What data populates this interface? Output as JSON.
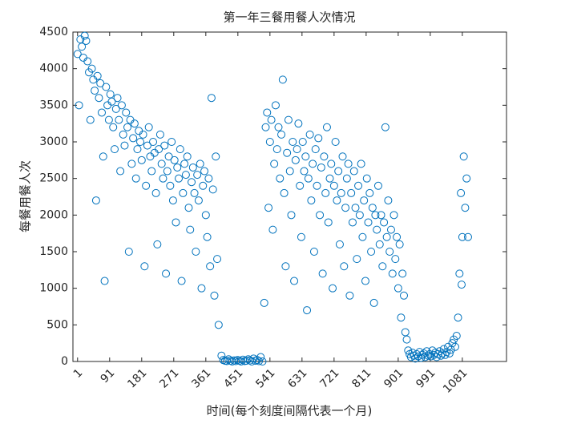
{
  "chart_data": {
    "type": "scatter",
    "title": "第一年三餐用餐人次情况",
    "x_label": "时间(每个刻度间隔代表一个月)",
    "y_label": "每餐用餐人次",
    "color": "#0072bd",
    "xlim": [
      -12,
      1205
    ],
    "ylim": [
      0,
      4500
    ],
    "xticks": [
      1,
      91,
      181,
      271,
      361,
      451,
      541,
      631,
      721,
      811,
      901,
      991,
      1081
    ],
    "yticks": [
      0,
      500,
      1000,
      1500,
      2000,
      2500,
      3000,
      3500,
      4000,
      4500
    ],
    "x": [
      1,
      5,
      9,
      13,
      17,
      21,
      25,
      29,
      33,
      37,
      41,
      45,
      49,
      53,
      57,
      61,
      65,
      69,
      73,
      77,
      81,
      85,
      89,
      93,
      97,
      101,
      105,
      109,
      113,
      117,
      121,
      125,
      129,
      133,
      137,
      141,
      145,
      149,
      153,
      157,
      161,
      165,
      169,
      173,
      177,
      181,
      185,
      189,
      193,
      197,
      201,
      205,
      209,
      213,
      217,
      221,
      225,
      229,
      233,
      237,
      241,
      245,
      249,
      253,
      257,
      261,
      265,
      269,
      273,
      277,
      281,
      285,
      289,
      293,
      297,
      301,
      305,
      309,
      313,
      317,
      321,
      325,
      329,
      333,
      337,
      341,
      345,
      349,
      353,
      357,
      361,
      365,
      369,
      373,
      377,
      381,
      385,
      389,
      393,
      397,
      405,
      410,
      415,
      420,
      425,
      430,
      435,
      440,
      445,
      450,
      455,
      460,
      465,
      470,
      475,
      480,
      485,
      490,
      495,
      500,
      505,
      510,
      515,
      520,
      525,
      529,
      533,
      537,
      541,
      545,
      549,
      553,
      557,
      561,
      565,
      569,
      573,
      577,
      581,
      585,
      589,
      593,
      597,
      601,
      605,
      609,
      613,
      617,
      621,
      625,
      629,
      633,
      637,
      641,
      645,
      649,
      653,
      657,
      661,
      665,
      669,
      673,
      677,
      681,
      685,
      689,
      693,
      697,
      701,
      705,
      709,
      713,
      717,
      721,
      725,
      729,
      733,
      737,
      741,
      745,
      749,
      753,
      757,
      761,
      765,
      769,
      773,
      777,
      781,
      785,
      789,
      793,
      797,
      801,
      805,
      809,
      813,
      817,
      821,
      825,
      829,
      833,
      837,
      841,
      845,
      849,
      853,
      857,
      861,
      865,
      869,
      873,
      877,
      881,
      885,
      889,
      893,
      897,
      901,
      905,
      909,
      913,
      917,
      921,
      925,
      929,
      933,
      937,
      941,
      945,
      949,
      953,
      957,
      961,
      965,
      969,
      973,
      977,
      981,
      985,
      989,
      993,
      997,
      1001,
      1005,
      1009,
      1013,
      1017,
      1021,
      1025,
      1029,
      1033,
      1037,
      1041,
      1045,
      1049,
      1053,
      1057,
      1061,
      1065,
      1069,
      1073,
      1077,
      1079,
      1081,
      1085,
      1089,
      1093,
      1097
    ],
    "values": [
      4200,
      3500,
      4400,
      4300,
      4150,
      4450,
      4380,
      4100,
      3950,
      3300,
      4000,
      3850,
      3700,
      2200,
      3900,
      3600,
      3800,
      3400,
      2800,
      1100,
      3750,
      3500,
      3300,
      3650,
      3550,
      3200,
      2900,
      3450,
      3600,
      3300,
      2600,
      3500,
      3100,
      2950,
      3400,
      3200,
      1500,
      3300,
      2700,
      3050,
      3250,
      2500,
      2900,
      3150,
      3000,
      2750,
      3100,
      1300,
      2400,
      2950,
      3200,
      2800,
      2600,
      3000,
      2850,
      2300,
      1600,
      2900,
      3100,
      2700,
      2500,
      2950,
      1200,
      2600,
      2800,
      2400,
      3000,
      2200,
      2750,
      1900,
      2650,
      2500,
      2900,
      1100,
      2300,
      2700,
      2550,
      2800,
      2100,
      1800,
      2450,
      2650,
      2300,
      1500,
      2550,
      2200,
      2700,
      1000,
      2400,
      2600,
      2000,
      1700,
      2500,
      1300,
      3600,
      2350,
      900,
      2800,
      1400,
      500,
      80,
      20,
      10,
      5,
      30,
      10,
      0,
      15,
      5,
      20,
      10,
      0,
      25,
      5,
      10,
      30,
      15,
      0,
      40,
      10,
      20,
      5,
      60,
      0,
      800,
      3200,
      3400,
      2100,
      3000,
      3300,
      1800,
      2700,
      3500,
      2900,
      3200,
      2500,
      3100,
      3850,
      2300,
      1300,
      2850,
      3300,
      2600,
      2000,
      3000,
      1100,
      2750,
      2900,
      3250,
      2400,
      1700,
      3000,
      2600,
      2800,
      700,
      2500,
      3100,
      2200,
      2700,
      1500,
      2900,
      2400,
      3050,
      2000,
      2650,
      1200,
      2800,
      2300,
      3200,
      1900,
      2500,
      2700,
      1000,
      2400,
      3000,
      2200,
      2600,
      1600,
      2300,
      2800,
      1300,
      2100,
      2500,
      2700,
      900,
      2300,
      1900,
      2600,
      2100,
      1400,
      2400,
      2000,
      2700,
      1700,
      2200,
      1100,
      2500,
      1900,
      2300,
      1500,
      2100,
      800,
      2000,
      1800,
      2400,
      1600,
      2000,
      1300,
      1900,
      3200,
      1700,
      2200,
      1500,
      1800,
      1200,
      2000,
      1400,
      1700,
      1000,
      1600,
      600,
      1200,
      900,
      400,
      300,
      150,
      100,
      60,
      120,
      80,
      40,
      100,
      70,
      130,
      50,
      90,
      110,
      60,
      140,
      80,
      100,
      70,
      150,
      90,
      120,
      60,
      100,
      140,
      80,
      110,
      170,
      90,
      130,
      200,
      110,
      160,
      250,
      300,
      200,
      350,
      600,
      1200,
      2300,
      1050,
      1700,
      2800,
      2100,
      2500,
      1700
    ]
  }
}
